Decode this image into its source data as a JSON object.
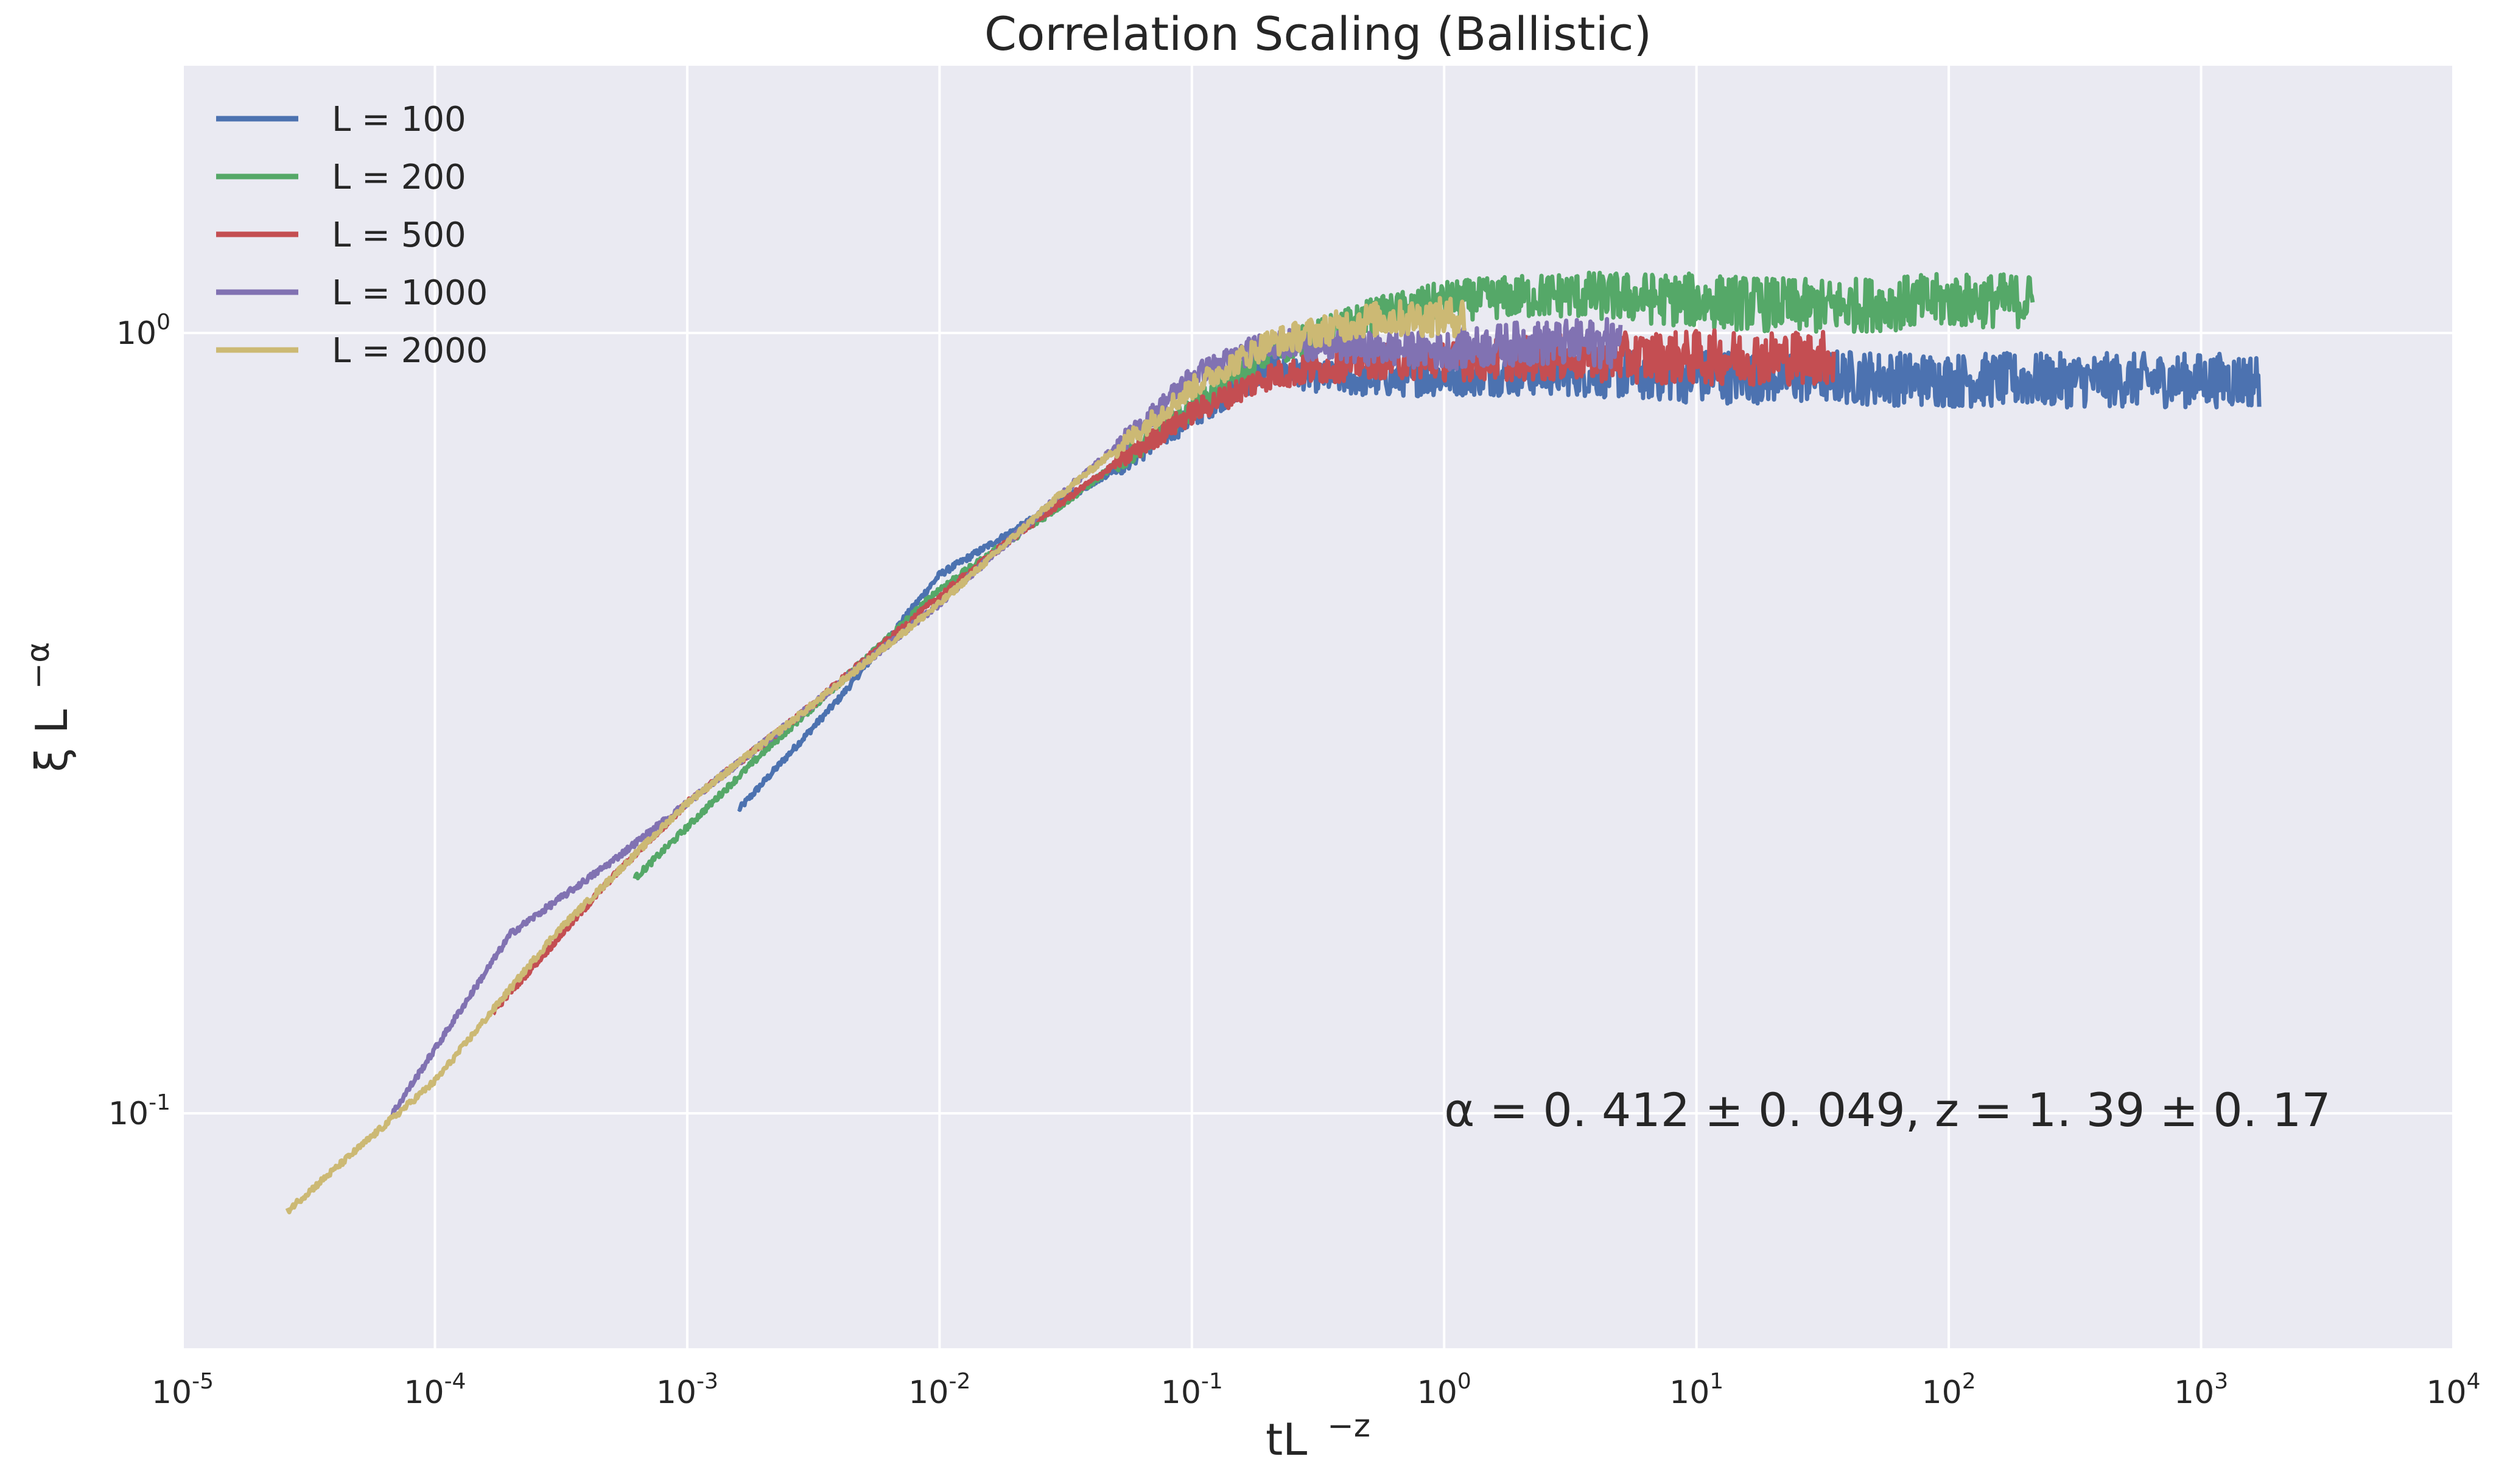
{
  "chart_data": {
    "type": "line",
    "title": "Correlation Scaling (Ballistic)",
    "xlabel": "tL",
    "xlabel_sup": "−z",
    "ylabel": "ξ  L",
    "ylabel_sup": "−α",
    "xscale": "log",
    "yscale": "log",
    "xlim": [
      1e-05,
      10000
    ],
    "ylim": [
      0.05,
      2.2
    ],
    "grid": true,
    "legend_position": "top-left",
    "x_ticks": [
      {
        "base": "10",
        "exp": "-5",
        "value": 1e-05
      },
      {
        "base": "10",
        "exp": "-4",
        "value": 0.0001
      },
      {
        "base": "10",
        "exp": "-3",
        "value": 0.001
      },
      {
        "base": "10",
        "exp": "-2",
        "value": 0.01
      },
      {
        "base": "10",
        "exp": "-1",
        "value": 0.1
      },
      {
        "base": "10",
        "exp": "0",
        "value": 1
      },
      {
        "base": "10",
        "exp": "1",
        "value": 10
      },
      {
        "base": "10",
        "exp": "2",
        "value": 100
      },
      {
        "base": "10",
        "exp": "3",
        "value": 1000
      },
      {
        "base": "10",
        "exp": "4",
        "value": 10000
      }
    ],
    "y_ticks": [
      {
        "base": "10",
        "exp": "-1",
        "value": 0.1
      },
      {
        "base": "10",
        "exp": "0",
        "value": 1
      }
    ],
    "annotation": "α = 0. 412 ± 0. 049,      z = 1. 39 ± 0. 17",
    "series": [
      {
        "name": "L = 100",
        "color": "#4c72b0",
        "x": [
          0.0016,
          0.004,
          0.01,
          0.02,
          0.05,
          0.1,
          0.2,
          0.3,
          0.5,
          1,
          3,
          10,
          30,
          100,
          300,
          1000,
          1700
        ],
        "y": [
          0.245,
          0.34,
          0.49,
          0.56,
          0.67,
          0.78,
          0.9,
          0.88,
          0.87,
          0.88,
          0.89,
          0.88,
          0.88,
          0.87,
          0.87,
          0.87,
          0.87
        ]
      },
      {
        "name": "L = 200",
        "color": "#55a868",
        "x": [
          0.00062,
          0.002,
          0.005,
          0.01,
          0.03,
          0.1,
          0.2,
          0.5,
          1,
          3,
          10,
          30,
          100,
          215
        ],
        "y": [
          0.2,
          0.29,
          0.38,
          0.47,
          0.6,
          0.8,
          0.94,
          1.05,
          1.1,
          1.12,
          1.1,
          1.08,
          1.1,
          1.1
        ]
      },
      {
        "name": "L = 500",
        "color": "#c44e52",
        "x": [
          0.00017,
          0.0005,
          0.001,
          0.003,
          0.01,
          0.02,
          0.05,
          0.1,
          0.2,
          0.5,
          1,
          3,
          10,
          35
        ],
        "y": [
          0.135,
          0.2,
          0.25,
          0.33,
          0.46,
          0.55,
          0.68,
          0.79,
          0.88,
          0.92,
          0.92,
          0.93,
          0.93,
          0.93
        ]
      },
      {
        "name": "L = 1000",
        "color": "#8172b2",
        "x": [
          6.8e-05,
          0.0002,
          0.0005,
          0.001,
          0.003,
          0.01,
          0.03,
          0.06,
          0.1,
          0.2,
          0.4,
          1,
          2,
          5
        ],
        "y": [
          0.1,
          0.17,
          0.21,
          0.25,
          0.33,
          0.45,
          0.62,
          0.75,
          0.88,
          0.97,
          0.96,
          0.95,
          0.97,
          0.97
        ]
      },
      {
        "name": "L = 2000",
        "color": "#ccb974",
        "x": [
          2.6e-05,
          0.0001,
          0.0003,
          0.001,
          0.003,
          0.01,
          0.03,
          0.1,
          0.2,
          0.5,
          1.2
        ],
        "y": [
          0.075,
          0.11,
          0.17,
          0.25,
          0.33,
          0.45,
          0.62,
          0.85,
          0.97,
          1.04,
          1.05
        ]
      }
    ]
  }
}
